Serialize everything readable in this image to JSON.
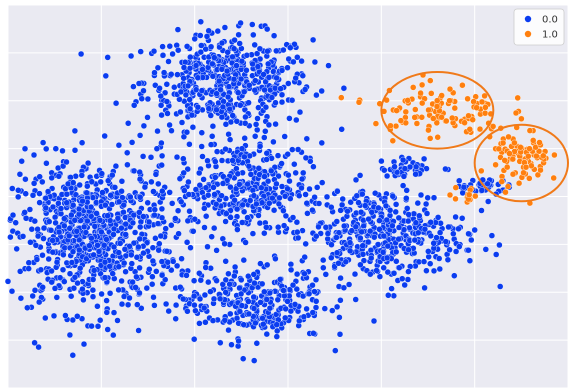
{
  "chart_data": {
    "type": "scatter",
    "title": "",
    "xlabel": "",
    "ylabel": "",
    "xlim": [
      -60,
      60
    ],
    "ylim": [
      -40,
      40
    ],
    "grid": true,
    "legend_placement": "top-right",
    "colors": {
      "background": "#eaeaf2",
      "grid": "#ffffff",
      "series_0": "#0a3cf0",
      "series_1": "#ff7f0e",
      "point_edge": "#ffffff",
      "annotation": "#f07a1a"
    },
    "series": [
      {
        "name": "0.0",
        "color": "#0a3cf0",
        "clusters": [
          {
            "cx": -13,
            "cy": 24,
            "sx": 9,
            "sy": 5,
            "n": 520
          },
          {
            "cx": -42,
            "cy": -8,
            "sx": 9,
            "sy": 8,
            "n": 850
          },
          {
            "cx": -10,
            "cy": 2,
            "sx": 7,
            "sy": 5,
            "n": 360
          },
          {
            "cx": 20,
            "cy": -8,
            "sx": 9,
            "sy": 5,
            "n": 440
          },
          {
            "cx": -8,
            "cy": -22,
            "sx": 8,
            "sy": 4,
            "n": 300
          },
          {
            "cx": 26,
            "cy": 6,
            "sx": 3,
            "sy": 1,
            "n": 40
          },
          {
            "cx": 41,
            "cy": 2,
            "sx": 3,
            "sy": 1,
            "n": 40
          }
        ]
      },
      {
        "name": "1.0",
        "color": "#ff7f0e",
        "clusters": [
          {
            "cx": 32,
            "cy": 18,
            "sx": 7,
            "sy": 3,
            "n": 110
          },
          {
            "cx": 50,
            "cy": 8,
            "sx": 3,
            "sy": 3,
            "n": 90
          },
          {
            "cx": 38,
            "cy": 0,
            "sx": 2,
            "sy": 1,
            "n": 12
          }
        ]
      }
    ],
    "annotations": [
      {
        "shape": "ellipse",
        "cx": 32,
        "cy": 18,
        "rx": 12,
        "ry": 8,
        "color": "#f07a1a"
      },
      {
        "shape": "ellipse",
        "cx": 50,
        "cy": 7,
        "rx": 10,
        "ry": 8,
        "color": "#f07a1a"
      }
    ]
  }
}
